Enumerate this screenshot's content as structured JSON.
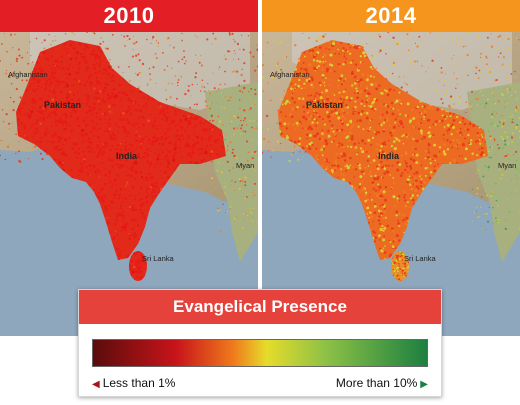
{
  "panels": [
    {
      "year": "2010",
      "bar_color": "#e31e24",
      "palette": [
        "#e61a17",
        "#d91414",
        "#f04a1e",
        "#e8301a",
        "#cc1010",
        "#f06a20"
      ],
      "palette_weights": [
        0.9,
        0.05,
        0.03,
        0.02
      ]
    },
    {
      "year": "2014",
      "bar_color": "#f5951e",
      "palette": [
        "#e83c1c",
        "#f07a22",
        "#e9c62a",
        "#c8d83a",
        "#6fbf4a",
        "#2e9a46"
      ],
      "palette_weights": [
        0.45,
        0.25,
        0.18,
        0.12
      ]
    }
  ],
  "map_labels": {
    "afghanistan": "Afghanistan",
    "pakistan": "Pakistan",
    "india": "India",
    "myanmar": "Myan",
    "sri_lanka": "Sri Lanka"
  },
  "legend": {
    "title": "Evangelical Presence",
    "low_label": "Less than 1%",
    "high_label": "More than 10%",
    "colors": [
      "#5a0c0c",
      "#c8141a",
      "#ef7a1c",
      "#e6dc2a",
      "#8cc046",
      "#1c8040"
    ]
  }
}
